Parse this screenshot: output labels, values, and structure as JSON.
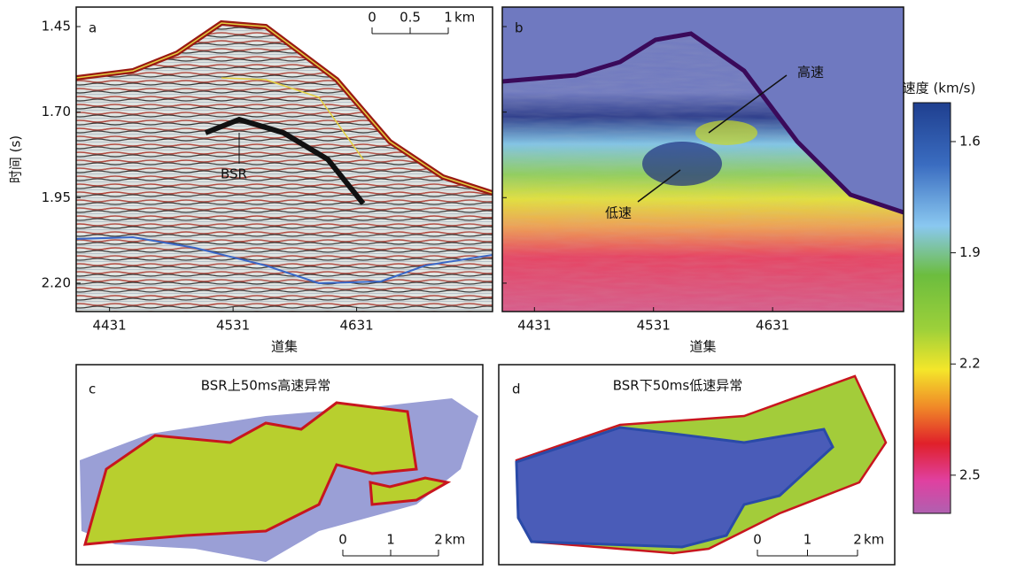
{
  "y_axis": {
    "label": "时间 (s)",
    "ylim": [
      1.393,
      2.283
    ],
    "ticks": [
      {
        "value": 1.45,
        "label": "1.45"
      },
      {
        "value": 1.7,
        "label": "1.70"
      },
      {
        "value": 1.95,
        "label": "1.95"
      },
      {
        "value": 2.2,
        "label": "2.20"
      }
    ]
  },
  "x_axis": {
    "label": "道集",
    "xlim": [
      4404,
      4741
    ],
    "ticks": [
      4431,
      4531,
      4631
    ]
  },
  "panels": [
    {
      "label": "a",
      "annotations": [
        "BSR"
      ],
      "scale_bar": {
        "ticks": [
          0,
          0.5,
          1
        ],
        "unit": "km"
      }
    },
    {
      "label": "b",
      "annotations": [
        "高速",
        "低速"
      ]
    },
    {
      "label": "c",
      "title": "BSR上50ms高速异常",
      "scale_bar": {
        "ticks": [
          0,
          1,
          2
        ],
        "unit": "km"
      }
    },
    {
      "label": "d",
      "title": "BSR下50ms低速异常",
      "scale_bar": {
        "ticks": [
          0,
          1,
          2
        ],
        "unit": "km"
      }
    }
  ],
  "colorbar": {
    "title": "速度 (km/s)",
    "lim": [
      1.495,
      2.603
    ],
    "ticks": [
      1.6,
      1.9,
      2.2,
      2.5
    ]
  }
}
